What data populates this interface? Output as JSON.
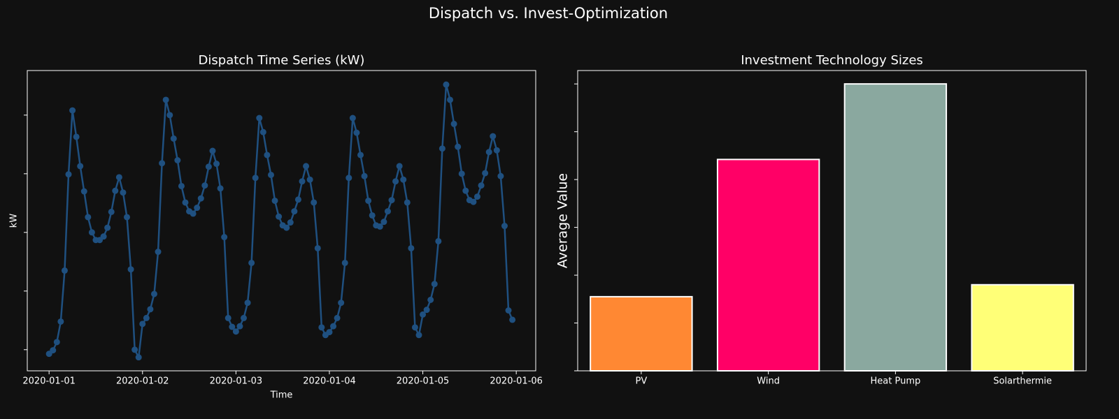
{
  "title": "Dispatch vs. Invest-Optimization",
  "chart_data": [
    {
      "type": "line",
      "title": "Dispatch Time Series (kW)",
      "x_label": "Time",
      "y_label": "kW",
      "color": "#1f5080",
      "x": [
        0,
        1,
        2,
        3,
        4,
        5,
        6,
        7,
        8,
        9,
        10,
        11,
        12,
        13,
        14,
        15,
        16,
        17,
        18,
        19,
        20,
        21,
        22,
        23,
        24,
        25,
        26,
        27,
        28,
        29,
        30,
        31,
        32,
        33,
        34,
        35,
        36,
        37,
        38,
        39,
        40,
        41,
        42,
        43,
        44,
        45,
        46,
        47,
        48,
        49,
        50,
        51,
        52,
        53,
        54,
        55,
        56,
        57,
        58,
        59,
        60,
        61,
        62,
        63,
        64,
        65,
        66,
        67,
        68,
        69,
        70,
        71,
        72,
        73,
        74,
        75,
        76,
        77,
        78,
        79,
        80,
        81,
        82,
        83,
        84,
        85,
        86,
        87,
        88,
        89,
        90,
        91,
        92,
        93,
        94,
        95,
        96,
        97,
        98,
        99,
        100,
        101,
        102,
        103,
        104,
        105,
        106,
        107,
        108,
        109,
        110,
        111,
        112,
        113,
        114,
        115,
        116,
        117,
        118,
        119
      ],
      "values": [
        -0.07,
        -0.01,
        0.13,
        0.48,
        1.35,
        2.99,
        4.08,
        3.63,
        3.13,
        2.7,
        2.26,
        2.0,
        1.87,
        1.87,
        1.93,
        2.08,
        2.35,
        2.71,
        2.94,
        2.68,
        2.26,
        1.37,
        0.0,
        -0.13,
        0.44,
        0.54,
        0.69,
        0.95,
        1.67,
        3.18,
        4.26,
        4.0,
        3.6,
        3.23,
        2.79,
        2.51,
        2.36,
        2.32,
        2.42,
        2.58,
        2.8,
        3.12,
        3.39,
        3.17,
        2.75,
        1.92,
        0.54,
        0.39,
        0.31,
        0.4,
        0.54,
        0.8,
        1.48,
        2.93,
        3.95,
        3.71,
        3.32,
        2.98,
        2.54,
        2.27,
        2.12,
        2.08,
        2.17,
        2.36,
        2.56,
        2.87,
        3.13,
        2.9,
        2.51,
        1.73,
        0.38,
        0.25,
        0.3,
        0.4,
        0.54,
        0.8,
        1.48,
        2.93,
        3.95,
        3.7,
        3.32,
        2.96,
        2.54,
        2.29,
        2.12,
        2.1,
        2.18,
        2.36,
        2.55,
        2.87,
        3.13,
        2.9,
        2.51,
        1.73,
        0.38,
        0.25,
        0.6,
        0.68,
        0.85,
        1.12,
        1.85,
        3.43,
        4.52,
        4.26,
        3.85,
        3.46,
        3.0,
        2.71,
        2.55,
        2.52,
        2.61,
        2.8,
        3.01,
        3.37,
        3.64,
        3.4,
        2.96,
        2.11,
        0.67,
        0.51
      ],
      "xlim": [
        -5.6,
        125
      ],
      "xticks": [
        {
          "value": 0,
          "label": "2020-01-01"
        },
        {
          "value": 24,
          "label": "2020-01-02"
        },
        {
          "value": 48,
          "label": "2020-01-03"
        },
        {
          "value": 72,
          "label": "2020-01-04"
        },
        {
          "value": 96,
          "label": "2020-01-05"
        },
        {
          "value": 120,
          "label": "2020-01-06"
        }
      ],
      "ylim": [
        -0.36,
        4.76
      ],
      "yticks": [
        0,
        1,
        2,
        3,
        4
      ],
      "grid": false
    },
    {
      "type": "bar",
      "title": "Investment Technology Sizes",
      "y_label": "Average Value",
      "categories": [
        "PV",
        "Wind",
        "Heat Pump",
        "Solarthermie"
      ],
      "values": [
        1.55,
        4.42,
        6.0,
        1.8
      ],
      "colors": [
        "#ff8833",
        "#ff0066",
        "#8aa89f",
        "#ffff77"
      ],
      "ylim": [
        0,
        6.28
      ],
      "yticks": [
        0,
        1,
        2,
        3,
        4,
        5,
        6
      ],
      "grid": false
    }
  ]
}
